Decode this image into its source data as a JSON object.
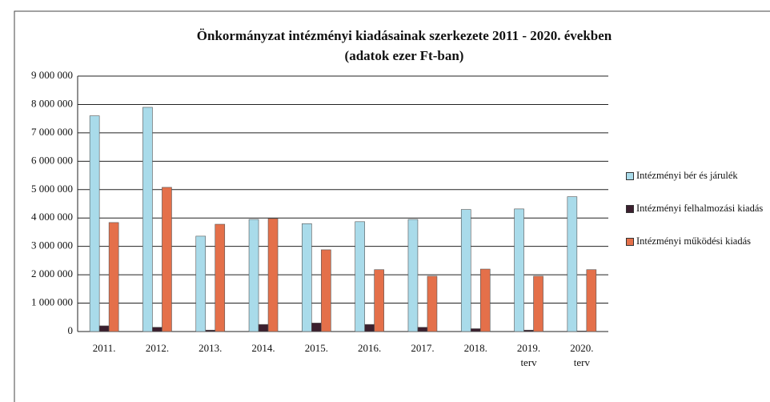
{
  "chart_data": {
    "type": "bar",
    "title": "Önkormányzat intézményi kiadásainak szerkezete 2011 - 2020. években",
    "subtitle": "(adatok ezer Ft-ban)",
    "categories": [
      "2011.",
      "2012.",
      "2013.",
      "2014.",
      "2015.",
      "2016.",
      "2017.",
      "2018.",
      [
        "2019.",
        "terv"
      ],
      [
        "2020.",
        "terv"
      ]
    ],
    "series": [
      {
        "name": "Intézményi bér és járulék",
        "color": "#a9dbea",
        "values": [
          7600000,
          7900000,
          3360000,
          3950000,
          3800000,
          3870000,
          3950000,
          4300000,
          4320000,
          4750000
        ]
      },
      {
        "name": "Intézményi felhalmozási kiadás",
        "color": "#3b1f2e",
        "values": [
          200000,
          150000,
          50000,
          250000,
          300000,
          250000,
          150000,
          100000,
          50000,
          20000
        ]
      },
      {
        "name": "Intézményi működési kiadás",
        "color": "#e4704a",
        "values": [
          3840000,
          5080000,
          3780000,
          3980000,
          2880000,
          2180000,
          1950000,
          2200000,
          1950000,
          2180000
        ]
      }
    ],
    "ylim": [
      0,
      9000000
    ],
    "yticks": [
      0,
      {
        "value": 1000000,
        "label": "1 000 000"
      },
      {
        "value": 2000000,
        "label": "2 000 000"
      },
      {
        "value": 3000000,
        "label": "3 000 000"
      },
      {
        "value": 4000000,
        "label": "4 000 000"
      },
      {
        "value": 5000000,
        "label": "5 000 000"
      },
      {
        "value": 6000000,
        "label": "6 000 000"
      },
      {
        "value": 7000000,
        "label": "7 000 000"
      },
      {
        "value": 8000000,
        "label": "8 000 000"
      },
      {
        "value": 9000000,
        "label": "9 000 000"
      }
    ],
    "grid": true,
    "legend": "right"
  }
}
